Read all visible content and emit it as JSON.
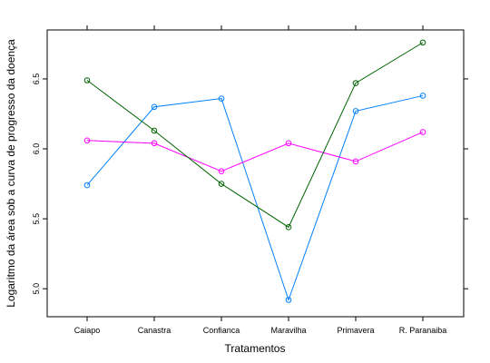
{
  "chart_data": {
    "type": "line",
    "xlabel": "Tratamentos",
    "ylabel": "Logaritmo da área sob a curva de progresso da doença",
    "categories": [
      "Caiapo",
      "Canastra",
      "Confianca",
      "Maravilha",
      "Primavera",
      "R. Paranaiba"
    ],
    "ylim": [
      4.8,
      6.85
    ],
    "yticks": [
      5.0,
      5.5,
      6.0,
      6.5
    ],
    "grid": false,
    "legend": "none",
    "series": [
      {
        "color": "#0080ff",
        "values": [
          5.74,
          6.3,
          6.36,
          4.92,
          6.27,
          6.38
        ]
      },
      {
        "color": "#ff00ff",
        "values": [
          6.06,
          6.04,
          5.84,
          6.04,
          5.91,
          6.12
        ]
      },
      {
        "color": "#006400",
        "values": [
          6.49,
          6.13,
          5.75,
          5.44,
          6.47,
          6.76
        ]
      }
    ]
  }
}
